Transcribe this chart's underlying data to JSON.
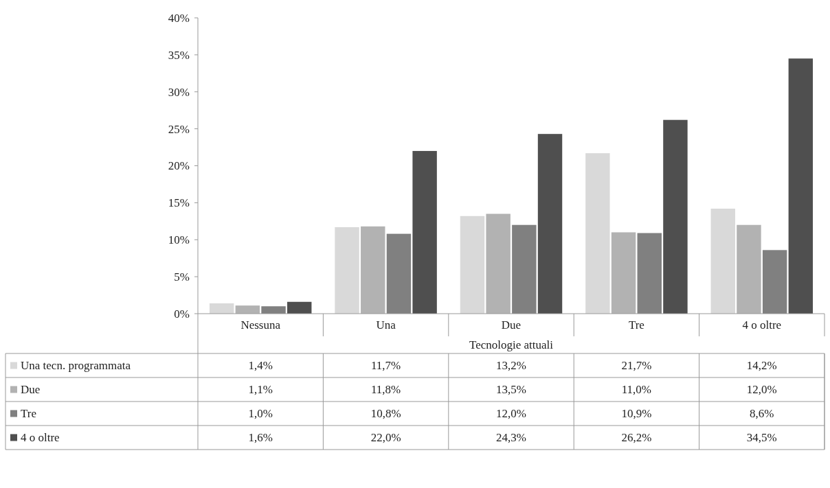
{
  "chart_data": {
    "type": "bar",
    "xlabel": "Tecnologie attuali",
    "categories": [
      "Nessuna",
      "Una",
      "Due",
      "Tre",
      "4 o oltre"
    ],
    "series": [
      {
        "name": "Una tecn. programmata",
        "color": "#d9d9d9",
        "values": [
          1.4,
          11.7,
          13.2,
          21.7,
          14.2
        ],
        "value_labels": [
          "1,4%",
          "11,7%",
          "13,2%",
          "21,7%",
          "14,2%"
        ]
      },
      {
        "name": "Due",
        "color": "#b2b2b2",
        "values": [
          1.1,
          11.8,
          13.5,
          11.0,
          12.0
        ],
        "value_labels": [
          "1,1%",
          "11,8%",
          "13,5%",
          "11,0%",
          "12,0%"
        ]
      },
      {
        "name": "Tre",
        "color": "#808080",
        "values": [
          1.0,
          10.8,
          12.0,
          10.9,
          8.6
        ],
        "value_labels": [
          "1,0%",
          "10,8%",
          "12,0%",
          "10,9%",
          "8,6%"
        ]
      },
      {
        "name": "4 o oltre",
        "color": "#4f4f4f",
        "values": [
          1.6,
          22.0,
          24.3,
          26.2,
          34.5
        ],
        "value_labels": [
          "1,6%",
          "22,0%",
          "24,3%",
          "26,2%",
          "34,5%"
        ]
      }
    ],
    "ylim": [
      0,
      40
    ],
    "yticks": [
      {
        "value": 0,
        "label": "0%"
      },
      {
        "value": 5,
        "label": "5%"
      },
      {
        "value": 10,
        "label": "10%"
      },
      {
        "value": 15,
        "label": "15%"
      },
      {
        "value": 20,
        "label": "20%"
      },
      {
        "value": 25,
        "label": "25%"
      },
      {
        "value": 30,
        "label": "30%"
      },
      {
        "value": 35,
        "label": "35%"
      },
      {
        "value": 40,
        "label": "40%"
      }
    ],
    "grid": false,
    "legend": "bottom"
  }
}
